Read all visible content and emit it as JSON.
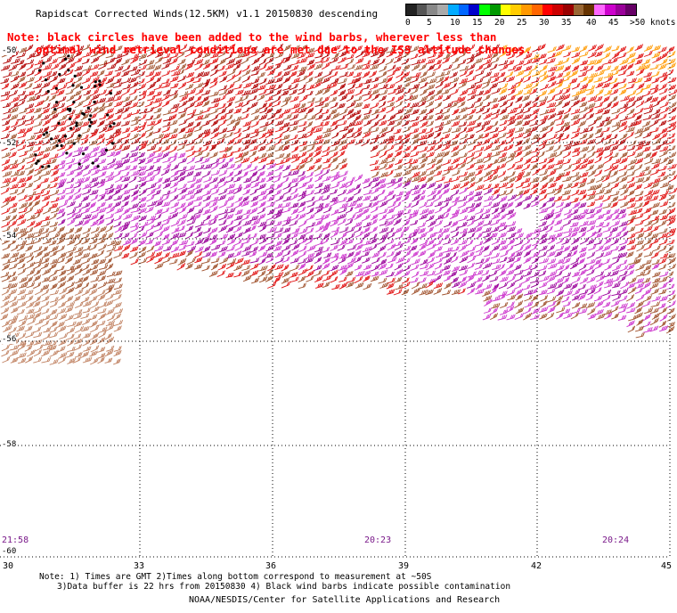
{
  "header": {
    "title": "Rapidscat Corrected Winds(12.5KM) v1.1 20150830 descending",
    "note_line1": "Note: black circles have been added to the wind barbs, wherever less than",
    "note_line2": "optimal wind retrieval conditions are met due to the ISS altitude changes."
  },
  "legend": {
    "colors": [
      "#222222",
      "#555555",
      "#888888",
      "#aaaaaa",
      "#00aaff",
      "#0066ff",
      "#0000cc",
      "#00ff00",
      "#009900",
      "#ffff00",
      "#ffcc00",
      "#ff9900",
      "#ff6600",
      "#ff0000",
      "#cc0000",
      "#990000",
      "#996633",
      "#663300",
      "#ff66ff",
      "#cc00cc",
      "#990099",
      "#660066"
    ],
    "labels": [
      "0",
      "5",
      "10",
      "15",
      "20",
      "25",
      "30",
      "35",
      "40",
      "45",
      ">50 knots"
    ]
  },
  "map": {
    "lon_labels": [
      "30",
      "33",
      "36",
      "39",
      "42",
      "45"
    ],
    "lat_labels": [
      "-50",
      "-52",
      "-54",
      "-56",
      "-58",
      "-60"
    ],
    "time_labels": [
      "21:58",
      "20:23",
      "20:24"
    ],
    "grid": true
  },
  "wind_colors": {
    "red": "#e01010",
    "dark_red": "#b00000",
    "brown": "#a0522d",
    "tan": "#c08060",
    "magenta": "#cc33cc",
    "purple": "#990099",
    "orange": "#ff9900",
    "black": "#000000"
  },
  "footer": {
    "line1": "Note: 1) Times are GMT 2)Times along bottom correspond to measurement at ~50S",
    "line2": "3)Data buffer is 22 hrs from 20150830 4) Black wind barbs indicate possible contamination",
    "credit": "NOAA/NESDIS/Center for Satellite Applications and Research"
  }
}
